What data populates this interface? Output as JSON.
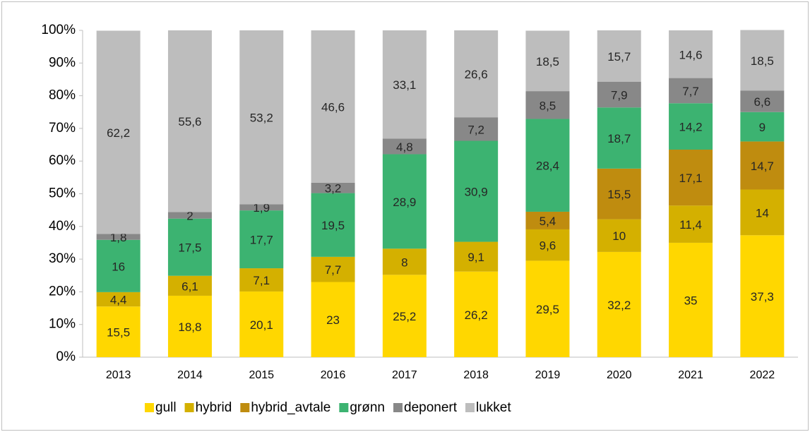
{
  "chart_data": {
    "type": "stacked_bar",
    "categories": [
      "2013",
      "2014",
      "2015",
      "2016",
      "2017",
      "2018",
      "2019",
      "2020",
      "2021",
      "2022"
    ],
    "series": [
      {
        "name": "gull",
        "color": "#ffd700",
        "values": [
          15.5,
          18.8,
          20.1,
          23,
          25.2,
          26.2,
          29.5,
          32.2,
          35,
          37.3
        ],
        "value_labels": [
          "15,5",
          "18,8",
          "20,1",
          "23",
          "25,2",
          "26,2",
          "29,5",
          "32,2",
          "35",
          "37,3"
        ]
      },
      {
        "name": "hybrid",
        "color": "#d4b000",
        "values": [
          4.4,
          6.1,
          7.1,
          7.7,
          8,
          9.1,
          9.6,
          10,
          11.4,
          14
        ],
        "value_labels": [
          "4,4",
          "6,1",
          "7,1",
          "7,7",
          "8",
          "9,1",
          "9,6",
          "10",
          "11,4",
          "14"
        ]
      },
      {
        "name": "hybrid_avtale",
        "color": "#bf8c0f",
        "values": [
          null,
          null,
          null,
          null,
          null,
          null,
          5.4,
          15.5,
          17.1,
          14.7
        ],
        "value_labels": [
          null,
          null,
          null,
          null,
          null,
          null,
          "5,4",
          "15,5",
          "17,1",
          "14,7"
        ]
      },
      {
        "name": "grønn",
        "color": "#3cb371",
        "values": [
          16,
          17.5,
          17.7,
          19.5,
          28.9,
          30.9,
          28.4,
          18.7,
          14.2,
          9
        ],
        "value_labels": [
          "16",
          "17,5",
          "17,7",
          "19,5",
          "28,9",
          "30,9",
          "28,4",
          "18,7",
          "14,2",
          "9"
        ]
      },
      {
        "name": "deponert",
        "color": "#888888",
        "values": [
          1.8,
          2,
          1.9,
          3.2,
          4.8,
          7.2,
          8.5,
          7.9,
          7.7,
          6.6
        ],
        "value_labels": [
          "1,8",
          "2",
          "1,9",
          "3,2",
          "4,8",
          "7,2",
          "8,5",
          "7,9",
          "7,7",
          "6,6"
        ]
      },
      {
        "name": "lukket",
        "color": "#bdbdbd",
        "values": [
          62.2,
          55.6,
          53.2,
          46.6,
          33.1,
          26.6,
          18.5,
          15.7,
          14.6,
          18.5
        ],
        "value_labels": [
          "62,2",
          "55,6",
          "53,2",
          "46,6",
          "33,1",
          "26,6",
          "18,5",
          "15,7",
          "14,6",
          "18,5"
        ]
      }
    ],
    "ylim": [
      0,
      100
    ],
    "yticks": [
      {
        "value": 0,
        "label": "0%"
      },
      {
        "value": 10,
        "label": "10%"
      },
      {
        "value": 20,
        "label": "20%"
      },
      {
        "value": 30,
        "label": "30%"
      },
      {
        "value": 40,
        "label": "40%"
      },
      {
        "value": 50,
        "label": "50%"
      },
      {
        "value": 60,
        "label": "60%"
      },
      {
        "value": 70,
        "label": "70%"
      },
      {
        "value": 80,
        "label": "80%"
      },
      {
        "value": 90,
        "label": "90%"
      },
      {
        "value": 100,
        "label": "100%"
      }
    ],
    "legend": "bottom"
  }
}
